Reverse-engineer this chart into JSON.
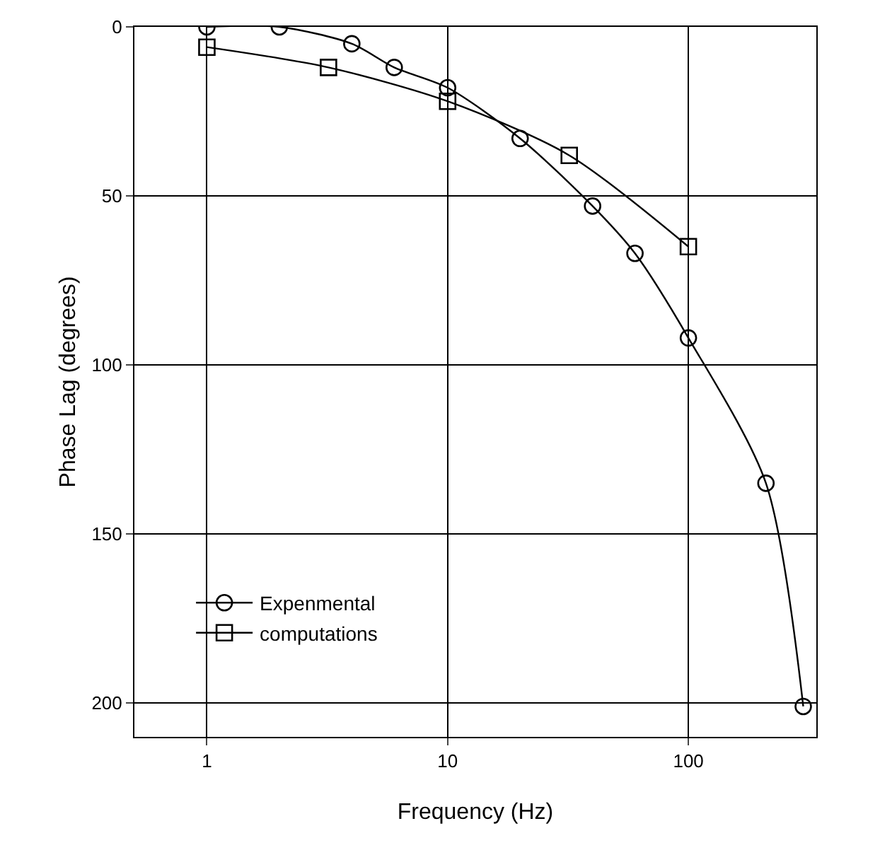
{
  "chart_data": {
    "type": "line",
    "xlabel": "Frequency (Hz)",
    "ylabel": "Phase Lag (degrees)",
    "log": "x",
    "xlim": [
      0.5,
      340
    ],
    "xticks": [
      1,
      10,
      100
    ],
    "ylim": [
      210,
      0
    ],
    "yticks": [
      0,
      50,
      100,
      150,
      200
    ],
    "grid": true,
    "legend": "bottom left",
    "line_style": "solid",
    "series": [
      {
        "name": "Expenmental",
        "color": "#000000",
        "marker": "circle",
        "x": [
          1,
          2,
          4,
          6,
          10,
          20,
          40,
          60,
          100,
          210,
          300
        ],
        "values": [
          0,
          0,
          5,
          12,
          18,
          33,
          53,
          67,
          92,
          135,
          201
        ]
      },
      {
        "name": "computations",
        "color": "#000000",
        "marker": "square",
        "x": [
          1,
          3.2,
          10,
          32,
          100
        ],
        "values": [
          6,
          12,
          22,
          38,
          65
        ]
      }
    ]
  }
}
